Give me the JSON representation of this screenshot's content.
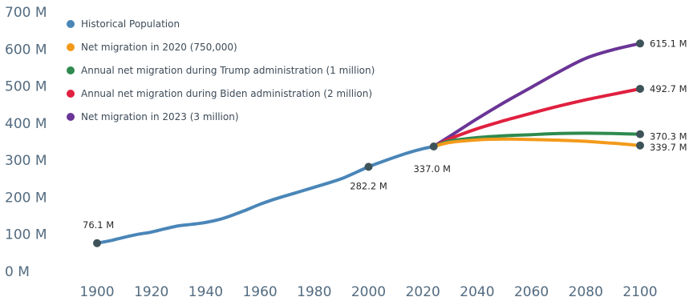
{
  "chart_data": {
    "type": "line",
    "ylim": [
      0,
      700
    ],
    "xlim": [
      1890,
      2110
    ],
    "x_ticks": [
      1900,
      1920,
      1940,
      1960,
      1980,
      2000,
      2020,
      2040,
      2060,
      2080,
      2100
    ],
    "x_tick_labels": [
      "1900",
      "1920",
      "1940",
      "1960",
      "1980",
      "2000",
      "2020",
      "2040",
      "2060",
      "2080",
      "2100"
    ],
    "y_ticks": [
      0,
      100,
      200,
      300,
      400,
      500,
      600,
      700
    ],
    "y_tick_labels": [
      "0 M",
      "100 M",
      "200 M",
      "300 M",
      "400 M",
      "500 M",
      "600 M",
      "700 M"
    ],
    "grid": false,
    "legend_position": "top-left",
    "series": [
      {
        "name": "Historical Population",
        "color": "#4a86b8",
        "x": [
          1900,
          1905,
          1910,
          1915,
          1920,
          1925,
          1930,
          1935,
          1940,
          1945,
          1950,
          1955,
          1960,
          1965,
          1970,
          1975,
          1980,
          1985,
          1990,
          1995,
          2000,
          2005,
          2010,
          2015,
          2020,
          2024
        ],
        "y": [
          76.1,
          83,
          92,
          100,
          106,
          115,
          123,
          127,
          132,
          140,
          152,
          166,
          181,
          194,
          205,
          216,
          227,
          238,
          250,
          266,
          282.2,
          296,
          309,
          321,
          331,
          337.0
        ]
      },
      {
        "name": "Net migration in 2020 (750,000)",
        "color": "#f39a1a",
        "x": [
          2024,
          2030,
          2040,
          2050,
          2060,
          2070,
          2080,
          2090,
          2100
        ],
        "y": [
          337.0,
          348,
          355,
          357,
          356,
          354,
          351,
          346,
          339.7
        ]
      },
      {
        "name": "Annual net migration during Trump administration (1 million)",
        "color": "#2e8a4e",
        "x": [
          2024,
          2030,
          2040,
          2050,
          2060,
          2070,
          2080,
          2090,
          2100
        ],
        "y": [
          337.0,
          352,
          361,
          366,
          369,
          372,
          373,
          372,
          370.3
        ]
      },
      {
        "name": "Annual net migration during Biden administration (2 million)",
        "color": "#e0203f",
        "x": [
          2024,
          2030,
          2040,
          2050,
          2060,
          2070,
          2080,
          2090,
          2100
        ],
        "y": [
          337.0,
          358,
          385,
          407,
          427,
          446,
          463,
          478,
          492.7
        ]
      },
      {
        "name": "Net migration in 2023 (3 million)",
        "color": "#6a3596",
        "x": [
          2024,
          2030,
          2040,
          2050,
          2060,
          2070,
          2080,
          2090,
          2100
        ],
        "y": [
          337.0,
          365,
          412,
          456,
          497,
          538,
          575,
          598,
          615.1
        ]
      }
    ],
    "data_labels": [
      {
        "x": 1900,
        "y": 76.1,
        "text": "76.1 M",
        "anchor": "above-left"
      },
      {
        "x": 2000,
        "y": 282.2,
        "text": "282.2 M",
        "anchor": "below"
      },
      {
        "x": 2024,
        "y": 337.0,
        "text": "337.0 M",
        "anchor": "below"
      },
      {
        "x": 2100,
        "y": 615.1,
        "text": "615.1 M",
        "anchor": "right"
      },
      {
        "x": 2100,
        "y": 492.7,
        "text": "492.7 M",
        "anchor": "right"
      },
      {
        "x": 2100,
        "y": 370.3,
        "text": "370.3 M",
        "anchor": "right-up"
      },
      {
        "x": 2100,
        "y": 339.7,
        "text": "339.7 M",
        "anchor": "right-down"
      }
    ],
    "marker_color": "#3e5359"
  }
}
